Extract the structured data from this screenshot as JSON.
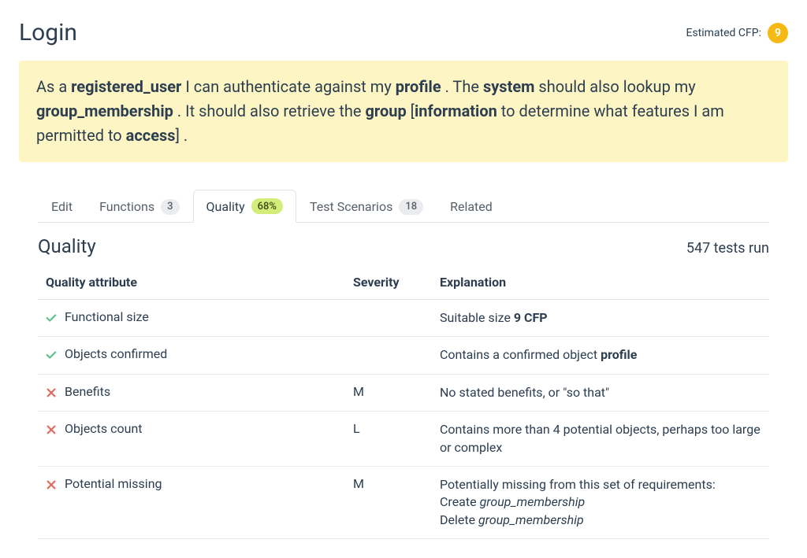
{
  "header": {
    "title": "Login",
    "cfp_label": "Estimated CFP:",
    "cfp_value": "9"
  },
  "story": {
    "segments": [
      {
        "t": "As a ",
        "b": false
      },
      {
        "t": "registered_user",
        "b": true
      },
      {
        "t": " I can authenticate against my ",
        "b": false
      },
      {
        "t": "profile",
        "b": true
      },
      {
        "t": " . The ",
        "b": false
      },
      {
        "t": "system",
        "b": true
      },
      {
        "t": " should also lookup my ",
        "b": false
      },
      {
        "t": "group_membership",
        "b": true
      },
      {
        "t": " . It should also retrieve the ",
        "b": false
      },
      {
        "t": "group",
        "b": true
      },
      {
        "t": " [",
        "b": false
      },
      {
        "t": "information",
        "b": true
      },
      {
        "t": " to determine what features I am permitted to ",
        "b": false
      },
      {
        "t": "access",
        "b": true
      },
      {
        "t": "] .",
        "b": false
      }
    ]
  },
  "tabs": [
    {
      "id": "edit",
      "label": "Edit",
      "badge": null,
      "badge_style": null,
      "active": false
    },
    {
      "id": "functions",
      "label": "Functions",
      "badge": "3",
      "badge_style": "grey",
      "active": false
    },
    {
      "id": "quality",
      "label": "Quality",
      "badge": "68%",
      "badge_style": "green",
      "active": true
    },
    {
      "id": "scenarios",
      "label": "Test Scenarios",
      "badge": "18",
      "badge_style": "grey",
      "active": false
    },
    {
      "id": "related",
      "label": "Related",
      "badge": null,
      "badge_style": null,
      "active": false
    }
  ],
  "quality": {
    "section_title": "Quality",
    "tests_run": "547 tests run",
    "columns": {
      "attr": "Quality attribute",
      "severity": "Severity",
      "explanation": "Explanation"
    },
    "rows": [
      {
        "status": "pass",
        "attribute": "Functional size",
        "severity": "",
        "explanation_html": "Suitable size <b>9 CFP</b>"
      },
      {
        "status": "pass",
        "attribute": "Objects confirmed",
        "severity": "",
        "explanation_html": "Contains a confirmed object <b>profile</b>"
      },
      {
        "status": "fail",
        "attribute": "Benefits",
        "severity": "M",
        "explanation_html": "No stated benefits, or \"so that\""
      },
      {
        "status": "fail",
        "attribute": "Objects count",
        "severity": "L",
        "explanation_html": "Contains more than 4 potential objects, perhaps too large or complex"
      },
      {
        "status": "fail",
        "attribute": "Potential missing",
        "severity": "M",
        "explanation_html": "Potentially missing from this set of requirements:<br>Create <i>group_membership</i><br>Delete <i>group_membership</i>"
      }
    ]
  },
  "colors": {
    "highlight_bg": "#fdf6c4",
    "accent_orange": "#f5b914",
    "pass_green": "#5bc28c",
    "fail_red": "#e06b5f",
    "pill_green_bg": "#d4ed7a",
    "text": "#2c3e50",
    "border": "#e1e4e8"
  }
}
